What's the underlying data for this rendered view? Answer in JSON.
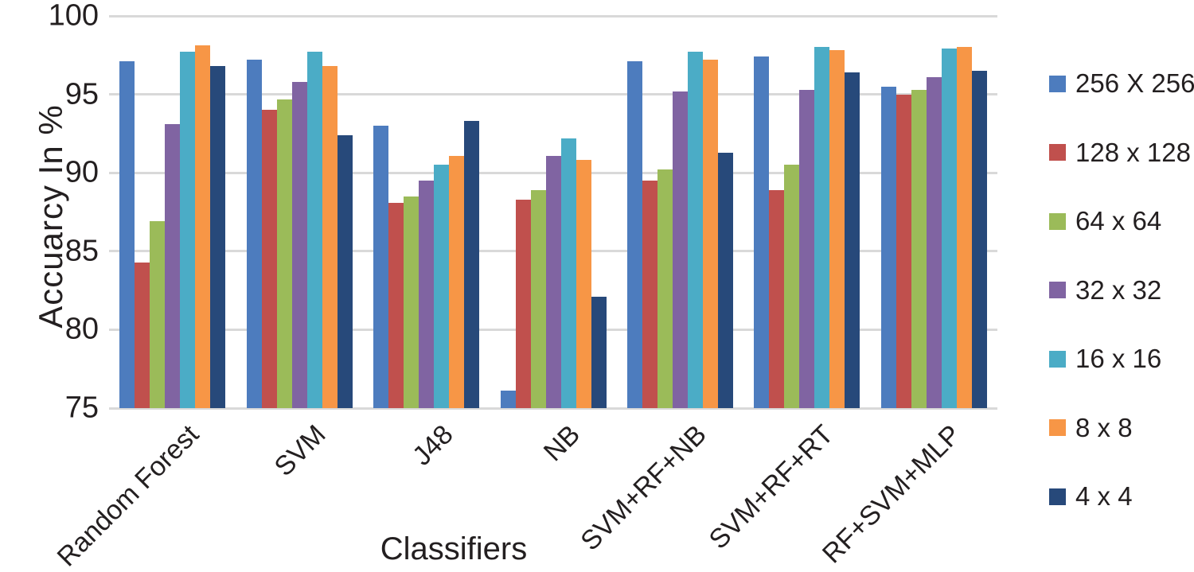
{
  "chart_data": {
    "type": "bar",
    "title": "",
    "xlabel": "Classifiers",
    "ylabel": "Accuarcy In %",
    "ylim": [
      75,
      100
    ],
    "yticks": [
      75,
      80,
      85,
      90,
      95,
      100
    ],
    "grid": true,
    "legend_position": "right",
    "categories": [
      "Random Forest",
      "SVM",
      "J48",
      "NB",
      "SVM+RF+NB",
      "SVM+RF+RT",
      "RF+SVM+MLP"
    ],
    "series": [
      {
        "name": "256 X 256",
        "color": "#4d7cbe",
        "values": [
          97.1,
          97.2,
          93.0,
          76.1,
          97.1,
          97.4,
          95.5
        ]
      },
      {
        "name": "128 x 128",
        "color": "#c0504d",
        "values": [
          84.3,
          94.0,
          88.1,
          88.3,
          89.5,
          88.9,
          95.0
        ]
      },
      {
        "name": "64 x 64",
        "color": "#9bbb59",
        "values": [
          86.9,
          94.7,
          88.5,
          88.9,
          90.2,
          90.5,
          95.3
        ]
      },
      {
        "name": "32 x 32",
        "color": "#8064a2",
        "values": [
          93.1,
          95.8,
          89.5,
          91.1,
          95.2,
          95.3,
          96.1
        ]
      },
      {
        "name": "16 x 16",
        "color": "#4bacc6",
        "values": [
          97.7,
          97.7,
          90.5,
          92.2,
          97.7,
          98.0,
          97.9
        ]
      },
      {
        "name": "8 x 8",
        "color": "#f79646",
        "values": [
          98.1,
          96.8,
          91.1,
          90.8,
          97.2,
          97.8,
          98.0
        ]
      },
      {
        "name": "4 x 4",
        "color": "#27497a",
        "values": [
          96.8,
          92.4,
          93.3,
          82.1,
          91.3,
          96.4,
          96.5
        ]
      }
    ],
    "axis_text_color": "#231f20",
    "gridline_color": "#d9d9d9"
  }
}
